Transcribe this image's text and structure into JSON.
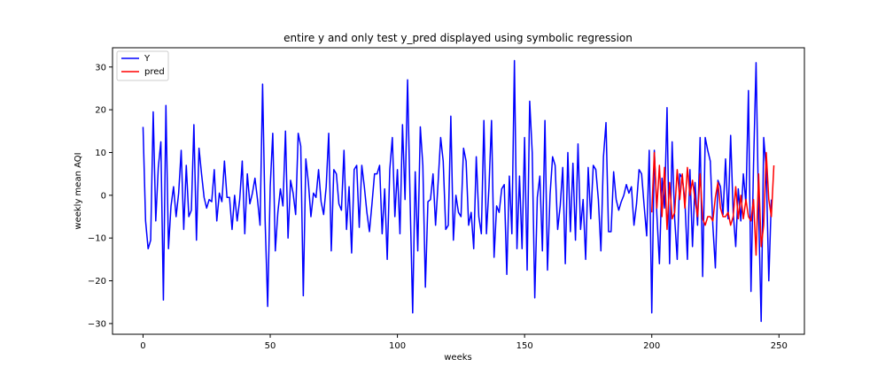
{
  "chart_data": {
    "type": "line",
    "title": "entire y and only test y_pred displayed using symbolic regression",
    "xlabel": "weeks",
    "ylabel": "weekly mean AQI",
    "xlim": [
      -12,
      260
    ],
    "ylim": [
      -32.5,
      34.5
    ],
    "x_ticks": [
      0,
      50,
      100,
      150,
      200,
      250
    ],
    "y_ticks": [
      -30,
      -20,
      -10,
      0,
      10,
      20,
      30
    ],
    "grid": false,
    "legend_position": "top-left",
    "series": [
      {
        "name": "Y",
        "color": "#0000ff",
        "x_start": 0,
        "values": [
          16,
          -6,
          -12.5,
          -10.5,
          19.5,
          -6,
          6.5,
          12.5,
          -24.5,
          21,
          -12.5,
          -2.5,
          2,
          -5,
          0.5,
          10.5,
          -8,
          7,
          -5,
          -3.5,
          16.5,
          -10.5,
          11,
          5,
          -0.5,
          -3,
          -1,
          -1.5,
          6,
          -6,
          0.5,
          -1.5,
          8,
          -0.5,
          -0.5,
          -8,
          0,
          -6,
          -1,
          8,
          -9,
          5,
          -2,
          0.5,
          4,
          -1,
          -7,
          26,
          -6,
          -26,
          2,
          14.5,
          -13,
          -4,
          1.5,
          -2.5,
          15,
          -10,
          3.5,
          0.5,
          -4.5,
          14.5,
          11.5,
          -23.5,
          8.5,
          3,
          -5,
          0.5,
          -0.5,
          6,
          -1.5,
          -4.5,
          2,
          14.5,
          -13,
          6,
          5,
          -2,
          -3.5,
          10.5,
          -8,
          2,
          -13.5,
          6,
          7,
          -7.5,
          7,
          2,
          -4,
          -8.5,
          -2,
          5,
          5,
          7,
          -9,
          1.5,
          -15,
          6,
          13.5,
          -5,
          6,
          -9,
          16.5,
          -1,
          27,
          -1.5,
          -27.5,
          5.5,
          -13,
          16,
          7,
          -21.5,
          -1.5,
          -1,
          5,
          -7,
          3,
          13.5,
          8,
          -8,
          -7,
          18.5,
          -10.5,
          0,
          -4,
          -5,
          11,
          8,
          -7,
          -4,
          -12.5,
          9,
          -5,
          -9,
          17.5,
          -9,
          2,
          17.5,
          -14.5,
          -2.5,
          -4,
          1.5,
          2.5,
          -18.5,
          4.5,
          -9,
          31.5,
          -12.5,
          4.5,
          -12.5,
          13.5,
          -17.5,
          22,
          10,
          -24,
          -0.5,
          4.5,
          -13,
          17.5,
          -17.5,
          0,
          9,
          7,
          -8,
          -2.5,
          6.5,
          -16,
          10,
          -8.5,
          7.5,
          -10.5,
          12,
          -8,
          -1,
          -15,
          6.5,
          -5.5,
          7,
          6,
          -1,
          -13,
          9,
          17,
          -8.5,
          -8.5,
          5.5,
          -1,
          -3.5,
          -1.5,
          0,
          2.5,
          0.5,
          2,
          -7,
          -2,
          6,
          5,
          -2.5,
          -9.5,
          10.5,
          -27.5,
          10.5,
          -4.5,
          -16,
          4,
          -3,
          20.5,
          -16,
          12.5,
          -5.5,
          -15,
          5,
          4,
          -1,
          -15,
          6,
          -12,
          3,
          -7,
          13.5,
          -19,
          13.5,
          10.5,
          8,
          -7,
          -17,
          3.5,
          2,
          -4.5,
          8.5,
          -5.5,
          14,
          -4,
          -12,
          1.5,
          -6,
          5,
          -2,
          24.5,
          -22.5,
          7,
          31,
          -4,
          -29.5,
          13.5,
          6,
          -20,
          -1
        ]
      },
      {
        "name": "pred",
        "color": "#ff0000",
        "x_start": 200,
        "values": [
          -4,
          10,
          -3,
          7,
          -5,
          6.5,
          -8,
          3,
          -5.5,
          -4,
          6,
          -1,
          5,
          -3,
          6.5,
          0,
          3.5,
          -1,
          -5,
          5,
          -5.5,
          -7,
          -5,
          -5,
          -6,
          -0.5,
          3,
          -3,
          -5,
          -5,
          -4,
          -7,
          -5,
          2,
          -5.5,
          0,
          -5.5,
          -1,
          -5,
          -6,
          -1,
          -14,
          5,
          -12,
          -7,
          10,
          -1,
          -5,
          7
        ]
      }
    ],
    "legend": [
      "Y",
      "pred"
    ]
  }
}
